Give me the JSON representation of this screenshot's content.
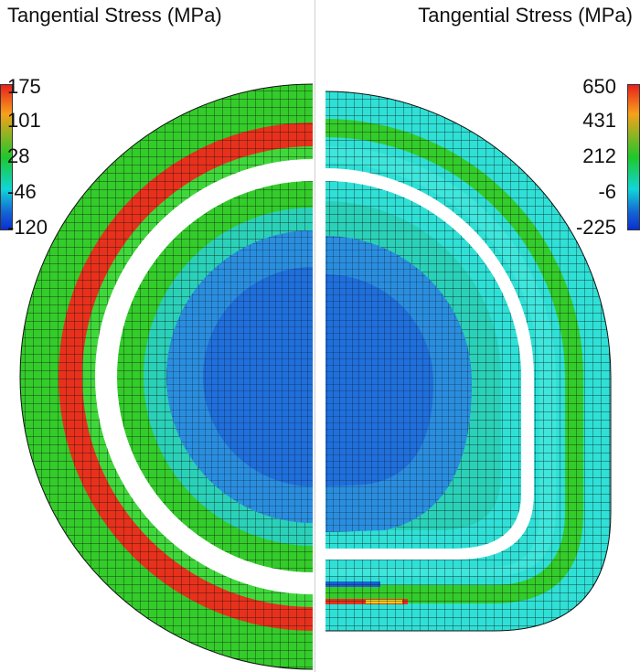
{
  "left_panel": {
    "title": "Tangential Stress (MPa)",
    "legend_ticks": [
      "175",
      "101",
      "28",
      "-46",
      "-120"
    ]
  },
  "right_panel": {
    "title": "Tangential Stress (MPa)",
    "legend_ticks": [
      "650",
      "431",
      "212",
      "-6",
      "-225"
    ]
  },
  "colors": {
    "red": "#e8311c",
    "green": "#33cc2a",
    "green_light": "#3fd83a",
    "cyan": "#2fe0d6",
    "cyan_light": "#3ee6dc",
    "teal": "#2ad1b8",
    "blue_mid": "#2a8ee0",
    "blue_deep": "#1b5fd4",
    "mesh": "#111111"
  }
}
